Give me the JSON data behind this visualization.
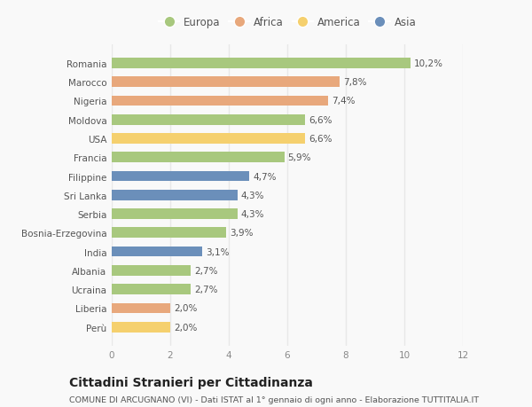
{
  "countries": [
    "Romania",
    "Marocco",
    "Nigeria",
    "Moldova",
    "USA",
    "Francia",
    "Filippine",
    "Sri Lanka",
    "Serbia",
    "Bosnia-Erzegovina",
    "India",
    "Albania",
    "Ucraina",
    "Liberia",
    "Perù"
  ],
  "values": [
    10.2,
    7.8,
    7.4,
    6.6,
    6.6,
    5.9,
    4.7,
    4.3,
    4.3,
    3.9,
    3.1,
    2.7,
    2.7,
    2.0,
    2.0
  ],
  "labels": [
    "10,2%",
    "7,8%",
    "7,4%",
    "6,6%",
    "6,6%",
    "5,9%",
    "4,7%",
    "4,3%",
    "4,3%",
    "3,9%",
    "3,1%",
    "2,7%",
    "2,7%",
    "2,0%",
    "2,0%"
  ],
  "continents": [
    "Europa",
    "Africa",
    "Africa",
    "Europa",
    "America",
    "Europa",
    "Asia",
    "Asia",
    "Europa",
    "Europa",
    "Asia",
    "Europa",
    "Europa",
    "Africa",
    "America"
  ],
  "colors": {
    "Europa": "#a8c87e",
    "Africa": "#e8a87c",
    "America": "#f5d06e",
    "Asia": "#6b8fba"
  },
  "legend_order": [
    "Europa",
    "Africa",
    "America",
    "Asia"
  ],
  "xlim": [
    0,
    12
  ],
  "xticks": [
    0,
    2,
    4,
    6,
    8,
    10,
    12
  ],
  "title": "Cittadini Stranieri per Cittadinanza",
  "subtitle": "COMUNE DI ARCUGNANO (VI) - Dati ISTAT al 1° gennaio di ogni anno - Elaborazione TUTTITALIA.IT",
  "bg_color": "#f9f9f9",
  "grid_color": "#e8e8e8",
  "bar_height": 0.55,
  "label_fontsize": 7.5,
  "tick_fontsize": 7.5,
  "title_fontsize": 10,
  "subtitle_fontsize": 6.8
}
